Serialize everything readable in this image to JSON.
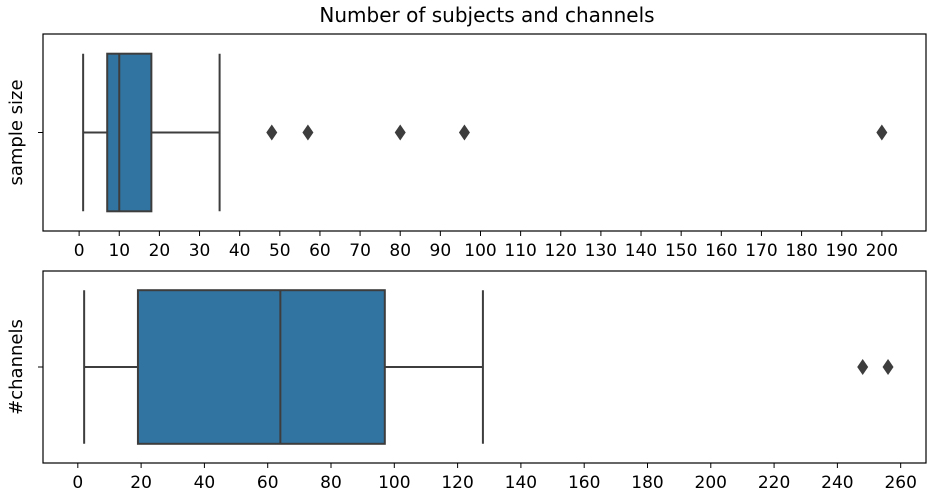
{
  "chart_data": {
    "title": "Number of subjects and channels",
    "color": "#3274a1",
    "panels": [
      {
        "type": "box",
        "ylabel": "sample size",
        "xlim": [
          -9,
          211
        ],
        "xticks": [
          0,
          10,
          20,
          30,
          40,
          50,
          60,
          70,
          80,
          90,
          100,
          110,
          120,
          130,
          140,
          150,
          160,
          170,
          180,
          190,
          200
        ],
        "stats": {
          "whisker_low": 1,
          "q1": 7,
          "median": 10,
          "q3": 18,
          "whisker_high": 35
        },
        "outliers": [
          48,
          57,
          80,
          96,
          200
        ]
      },
      {
        "type": "box",
        "ylabel": "#channels",
        "xlim": [
          -11,
          268
        ],
        "xticks": [
          0,
          20,
          40,
          60,
          80,
          100,
          120,
          140,
          160,
          180,
          200,
          220,
          240,
          260
        ],
        "stats": {
          "whisker_low": 2,
          "q1": 19,
          "median": 64,
          "q3": 97,
          "whisker_high": 128
        },
        "outliers": [
          248,
          256
        ]
      }
    ]
  }
}
